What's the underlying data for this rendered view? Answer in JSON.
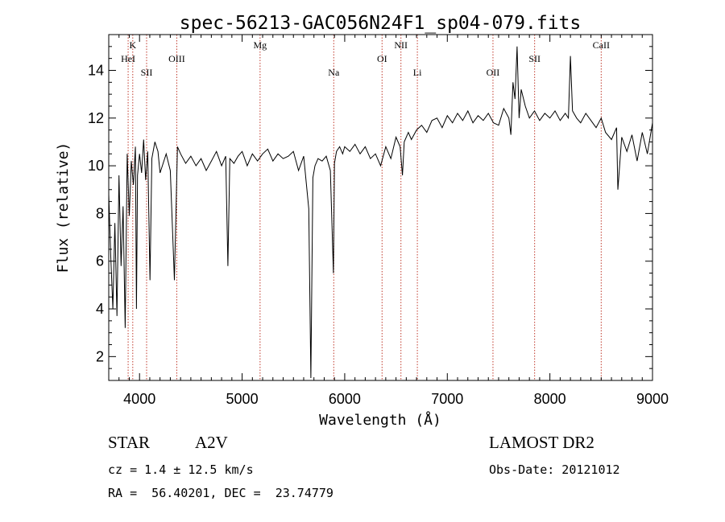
{
  "chart_data": {
    "type": "line",
    "title": "spec-56213-GAC056N24F1_sp04-079.fits",
    "xlabel": "Wavelength (Å)",
    "ylabel": "Flux (relative)",
    "xlim": [
      3700,
      9000
    ],
    "ylim": [
      1,
      15.5
    ],
    "x_ticks": [
      4000,
      5000,
      6000,
      7000,
      8000,
      9000
    ],
    "y_ticks": [
      2,
      4,
      6,
      8,
      10,
      12,
      14
    ],
    "grid": false,
    "series": [
      {
        "x": [
          3700,
          3720,
          3740,
          3760,
          3780,
          3800,
          3820,
          3840,
          3860,
          3880,
          3900,
          3920,
          3940,
          3960,
          3970,
          3980,
          4000,
          4020,
          4040,
          4060,
          4080,
          4102,
          4120,
          4150,
          4180,
          4200,
          4230,
          4260,
          4300,
          4340,
          4370,
          4400,
          4450,
          4500,
          4550,
          4600,
          4650,
          4700,
          4750,
          4800,
          4840,
          4861,
          4880,
          4920,
          4960,
          5000,
          5050,
          5100,
          5150,
          5200,
          5250,
          5300,
          5350,
          5400,
          5450,
          5500,
          5550,
          5600,
          5650,
          5670,
          5690,
          5710,
          5740,
          5780,
          5820,
          5860,
          5890,
          5900,
          5920,
          5950,
          5980,
          6000,
          6050,
          6100,
          6150,
          6200,
          6250,
          6300,
          6350,
          6400,
          6450,
          6500,
          6540,
          6563,
          6580,
          6620,
          6650,
          6700,
          6750,
          6800,
          6850,
          6900,
          6950,
          7000,
          7050,
          7100,
          7150,
          7200,
          7250,
          7300,
          7350,
          7400,
          7450,
          7500,
          7550,
          7600,
          7620,
          7640,
          7660,
          7680,
          7700,
          7720,
          7760,
          7800,
          7850,
          7900,
          7950,
          8000,
          8050,
          8100,
          8150,
          8180,
          8200,
          8220,
          8260,
          8300,
          8350,
          8400,
          8450,
          8500,
          8542,
          8600,
          8650,
          8662,
          8700,
          8750,
          8800,
          8850,
          8900,
          8950,
          9000
        ],
        "y": [
          8.8,
          6.2,
          4.0,
          7.6,
          3.7,
          9.6,
          5.8,
          8.3,
          3.2,
          10.5,
          7.9,
          10.2,
          9.2,
          10.8,
          4.0,
          9.6,
          10.5,
          9.7,
          11.1,
          9.4,
          10.6,
          5.2,
          10.3,
          11.0,
          10.6,
          9.7,
          10.1,
          10.5,
          9.8,
          5.2,
          10.8,
          10.5,
          10.1,
          10.4,
          10.0,
          10.3,
          9.8,
          10.2,
          10.6,
          10.0,
          10.4,
          5.8,
          10.3,
          10.1,
          10.4,
          10.6,
          10.0,
          10.5,
          10.2,
          10.5,
          10.7,
          10.2,
          10.5,
          10.3,
          10.4,
          10.6,
          9.8,
          10.4,
          8.2,
          1.1,
          9.5,
          10.0,
          10.3,
          10.2,
          10.4,
          9.8,
          5.5,
          10.1,
          10.6,
          10.8,
          10.5,
          10.8,
          10.6,
          10.9,
          10.5,
          10.8,
          10.3,
          10.5,
          10.0,
          10.8,
          10.3,
          11.2,
          10.8,
          9.6,
          11.0,
          11.4,
          11.1,
          11.5,
          11.7,
          11.4,
          11.9,
          12.0,
          11.6,
          12.1,
          11.8,
          12.2,
          11.9,
          12.3,
          11.8,
          12.1,
          11.9,
          12.2,
          11.8,
          11.7,
          12.4,
          12.0,
          11.3,
          13.5,
          12.8,
          15.0,
          12.0,
          13.2,
          12.5,
          12.0,
          12.3,
          11.9,
          12.2,
          12.0,
          12.3,
          11.9,
          12.2,
          12.0,
          14.6,
          12.3,
          12.0,
          11.8,
          12.2,
          11.9,
          11.6,
          12.0,
          11.4,
          11.1,
          11.6,
          9.0,
          11.2,
          10.6,
          11.3,
          10.2,
          11.4,
          10.5,
          11.8
        ]
      }
    ],
    "line_markers": [
      {
        "label": "K",
        "wavelength": 3934
      },
      {
        "label": "HeI",
        "wavelength": 3889
      },
      {
        "label": "SII",
        "wavelength": 4069
      },
      {
        "label": "OIII",
        "wavelength": 4363
      },
      {
        "label": "Mg",
        "wavelength": 5175
      },
      {
        "label": "Na",
        "wavelength": 5893
      },
      {
        "label": "OI",
        "wavelength": 6364
      },
      {
        "label": "NII",
        "wavelength": 6548
      },
      {
        "label": "Li",
        "wavelength": 6708
      },
      {
        "label": "OII",
        "wavelength": 7445
      },
      {
        "label": "SII",
        "wavelength": 7851
      },
      {
        "label": "CaII",
        "wavelength": 8500
      }
    ]
  },
  "info": {
    "object_type": "STAR",
    "subclass": "A2V",
    "survey": "LAMOST DR2",
    "cz": "cz = 1.4 ± 12.5 km/s",
    "obs_date": "Obs-Date: 20121012",
    "coords": "RA =  56.40201, DEC =  23.74779"
  },
  "colors": {
    "spectrum": "#000000",
    "marker_lines": "#c0392b"
  }
}
